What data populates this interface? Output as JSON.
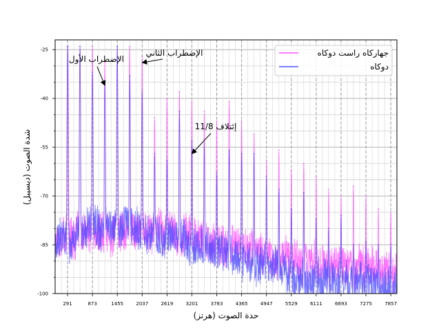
{
  "chart_data": {
    "type": "line",
    "title": "",
    "xlabel": "حدة الصوت (هرتز)",
    "ylabel": "شدة الصوت (ديسيبل)",
    "xlim": [
      0,
      8000
    ],
    "ylim": [
      -100,
      -22
    ],
    "x_ticks": [
      291,
      873,
      1455,
      2037,
      2619,
      3201,
      3783,
      4365,
      4947,
      5529,
      6111,
      6693,
      7275,
      7857
    ],
    "y_ticks": [
      -25,
      -40,
      -55,
      -70,
      -85,
      -100
    ],
    "y_tick_labels": [
      "-25",
      "-40",
      "-55",
      "-70",
      "-85",
      "-100"
    ],
    "grid": true,
    "legend_position": "top-right",
    "series": [
      {
        "name": "جهاركاه راست دوكاه",
        "color": "#ff44ff",
        "peaks": [
          [
            300,
            -24
          ],
          [
            581,
            -24
          ],
          [
            873,
            -24
          ],
          [
            1164,
            -29
          ],
          [
            1455,
            -24
          ],
          [
            1746,
            -24
          ],
          [
            2037,
            -27
          ],
          [
            2328,
            -46
          ],
          [
            2619,
            -40
          ],
          [
            2910,
            -38
          ],
          [
            3201,
            -41
          ],
          [
            3492,
            -44
          ],
          [
            3783,
            -47
          ],
          [
            4074,
            -41
          ],
          [
            4365,
            -47
          ],
          [
            4656,
            -51
          ],
          [
            4947,
            -59
          ],
          [
            5238,
            -56
          ],
          [
            5529,
            -62
          ],
          [
            5820,
            -60
          ],
          [
            6111,
            -64
          ],
          [
            6402,
            -68
          ],
          [
            6693,
            -70
          ],
          [
            6984,
            -67
          ],
          [
            7275,
            -70
          ],
          [
            7566,
            -74
          ],
          [
            7857,
            -75
          ]
        ],
        "noise_floor": [
          [
            0,
            -82
          ],
          [
            1000,
            -82
          ],
          [
            2000,
            -80
          ],
          [
            3000,
            -82
          ],
          [
            4000,
            -85
          ],
          [
            5000,
            -88
          ],
          [
            6000,
            -90
          ],
          [
            7000,
            -92
          ],
          [
            8000,
            -92
          ]
        ]
      },
      {
        "name": "دوكاه",
        "color": "#4444ff",
        "peaks": [
          [
            291,
            -24
          ],
          [
            582,
            -24
          ],
          [
            873,
            -32
          ],
          [
            1164,
            -35
          ],
          [
            1455,
            -24
          ],
          [
            1746,
            -33
          ],
          [
            2037,
            -38
          ],
          [
            2328,
            -57
          ],
          [
            2619,
            -59
          ],
          [
            2910,
            -44
          ],
          [
            3201,
            -53
          ],
          [
            3492,
            -54
          ],
          [
            3783,
            -63
          ],
          [
            4074,
            -56
          ],
          [
            4365,
            -57
          ],
          [
            4656,
            -57
          ],
          [
            4947,
            -64
          ],
          [
            5238,
            -68
          ],
          [
            5529,
            -74
          ],
          [
            5820,
            -69
          ],
          [
            6111,
            -77
          ],
          [
            6402,
            -80
          ],
          [
            6693,
            -76
          ],
          [
            6984,
            -85
          ],
          [
            7275,
            -84
          ],
          [
            7566,
            -85
          ],
          [
            7857,
            -85
          ]
        ],
        "noise_floor": [
          [
            0,
            -85
          ],
          [
            1000,
            -78
          ],
          [
            2000,
            -80
          ],
          [
            3000,
            -84
          ],
          [
            4000,
            -88
          ],
          [
            5000,
            -92
          ],
          [
            6000,
            -96
          ],
          [
            7000,
            -97
          ],
          [
            8000,
            -97
          ]
        ]
      }
    ],
    "annotations": [
      {
        "text": "الإضطراب الأول",
        "arrow_to": [
          1164,
          -36
        ]
      },
      {
        "text": "الإضطراب الثاني",
        "arrow_to": [
          2037,
          -29
        ]
      },
      {
        "text": "إئتلاف 11/8",
        "arrow_to": [
          3201,
          -57
        ]
      }
    ]
  }
}
